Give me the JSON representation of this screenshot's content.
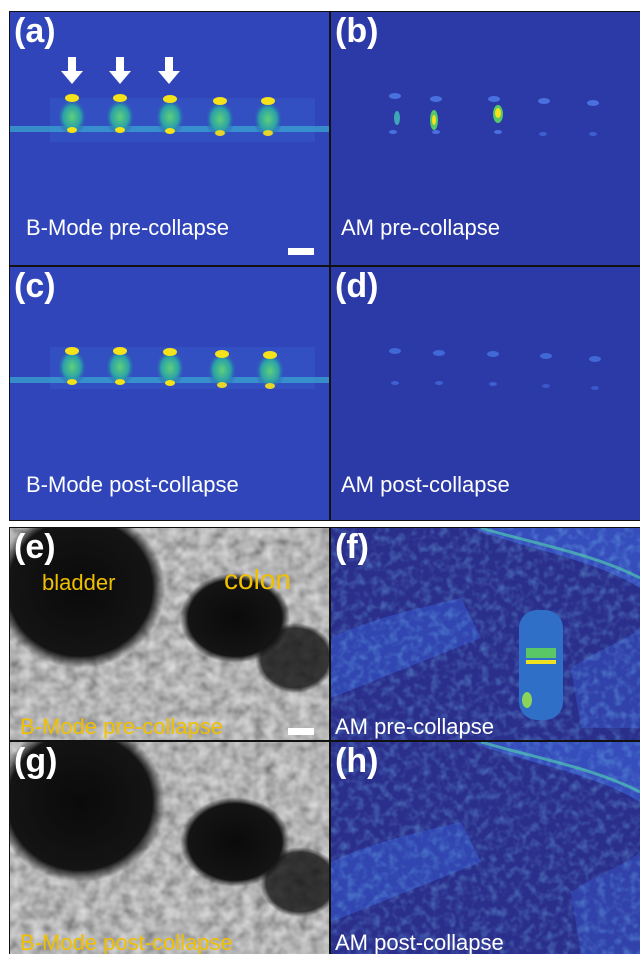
{
  "colors": {
    "am_background": "#2b3aa6",
    "bmode_blue_background": "#2f44b8",
    "bead_yellow": "#f5e21a",
    "bead_green": "#49c27a",
    "label_yellow": "#f0c000"
  },
  "panels": {
    "a": {
      "letter": "(a)",
      "caption": "B-Mode pre-collapse"
    },
    "b": {
      "letter": "(b)",
      "caption": "AM pre-collapse"
    },
    "c": {
      "letter": "(c)",
      "caption": "B-Mode post-collapse"
    },
    "d": {
      "letter": "(d)",
      "caption": "AM post-collapse"
    },
    "e": {
      "letter": "(e)",
      "caption": "B-Mode pre-collapse",
      "organ_bladder": "bladder",
      "organ_colon": "colon"
    },
    "f": {
      "letter": "(f)",
      "caption": "AM pre-collapse"
    },
    "g": {
      "letter": "(g)",
      "caption": "B-Mode post-collapse"
    },
    "h": {
      "letter": "(h)",
      "caption": "AM post-collapse"
    }
  },
  "icons": [
    "down-arrow-icon",
    "scale-bar"
  ]
}
